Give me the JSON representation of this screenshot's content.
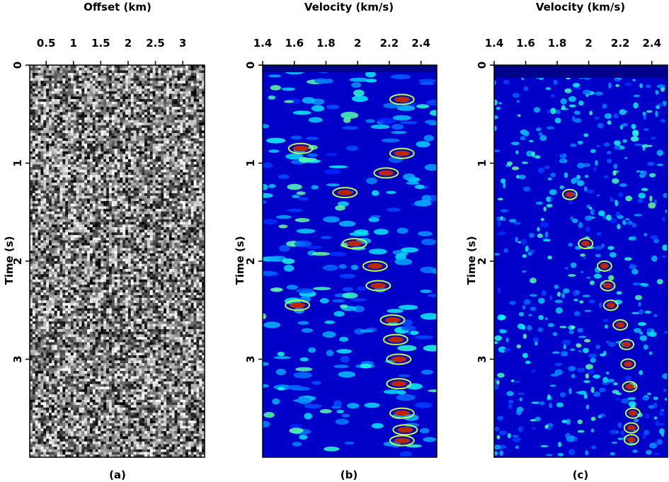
{
  "panels": [
    {
      "id": "a",
      "caption": "(a)",
      "x_axis_label": "Offset (km)",
      "y_axis_label": "Time (s)",
      "x_ticks": [
        "0.5",
        "1",
        "1.5",
        "2",
        "2.5",
        "3"
      ],
      "y_ticks": [
        "0",
        "1",
        "2",
        "3"
      ]
    },
    {
      "id": "b",
      "caption": "(b)",
      "x_axis_label": "Velocity (km/s)",
      "y_axis_label": "Time (s)",
      "x_ticks": [
        "1.4",
        "1.6",
        "1.8",
        "2",
        "2.2",
        "2.4"
      ],
      "y_ticks": [
        "0",
        "1",
        "2",
        "3"
      ]
    },
    {
      "id": "c",
      "caption": "(c)",
      "x_axis_label": "Velocity (km/s)",
      "y_axis_label": "Time (s)",
      "x_ticks": [
        "1.4",
        "1.6",
        "1.8",
        "2",
        "2.2",
        "2.4"
      ],
      "y_ticks": [
        "0",
        "1",
        "2",
        "3"
      ]
    }
  ],
  "chart_data": [
    {
      "type": "heatmap",
      "panel": "a",
      "description_kind": "seismic gather (grayscale)",
      "colormap": [
        "#000000",
        "#ffffff"
      ],
      "xlabel": "Offset (km)",
      "ylabel": "Time (s)",
      "xlim": [
        0.2,
        3.4
      ],
      "ylim": [
        0,
        4.0
      ],
      "x_ticks": [
        0.5,
        1,
        1.5,
        2,
        2.5,
        3
      ],
      "y_ticks": [
        0,
        1,
        2,
        3
      ]
    },
    {
      "type": "heatmap",
      "panel": "b",
      "description_kind": "velocity semblance",
      "colormap": [
        "#00008f",
        "#0000ff",
        "#00a0ff",
        "#00ffff",
        "#ffff00",
        "#ff6000",
        "#8f0000"
      ],
      "xlabel": "Velocity (km/s)",
      "ylabel": "Time (s)",
      "xlim": [
        1.4,
        2.5
      ],
      "ylim": [
        0,
        4.0
      ],
      "x_ticks": [
        1.4,
        1.6,
        1.8,
        2,
        2.2,
        2.4
      ],
      "y_ticks": [
        0,
        1,
        2,
        3
      ],
      "peaks": [
        {
          "t": 0.35,
          "v": 2.28
        },
        {
          "t": 0.85,
          "v": 1.64
        },
        {
          "t": 0.9,
          "v": 2.28
        },
        {
          "t": 1.1,
          "v": 2.18
        },
        {
          "t": 1.3,
          "v": 1.92
        },
        {
          "t": 1.82,
          "v": 1.98
        },
        {
          "t": 2.05,
          "v": 2.11
        },
        {
          "t": 2.25,
          "v": 2.13
        },
        {
          "t": 2.45,
          "v": 1.62
        },
        {
          "t": 2.6,
          "v": 2.22
        },
        {
          "t": 2.8,
          "v": 2.24
        },
        {
          "t": 3.0,
          "v": 2.26
        },
        {
          "t": 3.25,
          "v": 2.26
        },
        {
          "t": 3.55,
          "v": 2.28
        },
        {
          "t": 3.72,
          "v": 2.3
        },
        {
          "t": 3.83,
          "v": 2.28
        }
      ]
    },
    {
      "type": "heatmap",
      "panel": "c",
      "description_kind": "velocity semblance (high resolution)",
      "colormap": [
        "#00008f",
        "#0000ff",
        "#00a0ff",
        "#00ffff",
        "#ffff00",
        "#ff6000",
        "#8f0000"
      ],
      "xlabel": "Velocity (km/s)",
      "ylabel": "Time (s)",
      "xlim": [
        1.4,
        2.5
      ],
      "ylim": [
        0,
        4.0
      ],
      "x_ticks": [
        1.4,
        1.6,
        1.8,
        2,
        2.2,
        2.4
      ],
      "y_ticks": [
        0,
        1,
        2,
        3
      ],
      "peaks": [
        {
          "t": 1.32,
          "v": 1.88
        },
        {
          "t": 1.82,
          "v": 1.98
        },
        {
          "t": 2.05,
          "v": 2.1
        },
        {
          "t": 2.25,
          "v": 2.12
        },
        {
          "t": 2.45,
          "v": 2.14
        },
        {
          "t": 2.65,
          "v": 2.2
        },
        {
          "t": 2.85,
          "v": 2.24
        },
        {
          "t": 3.05,
          "v": 2.25
        },
        {
          "t": 3.28,
          "v": 2.26
        },
        {
          "t": 3.55,
          "v": 2.28
        },
        {
          "t": 3.7,
          "v": 2.27
        },
        {
          "t": 3.82,
          "v": 2.27
        }
      ]
    }
  ]
}
